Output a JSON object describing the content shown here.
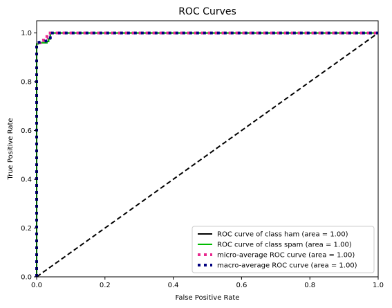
{
  "chart_data": {
    "type": "line",
    "title": "ROC Curves",
    "xlabel": "False Positive Rate",
    "ylabel": "True Positive Rate",
    "xlim": [
      0.0,
      1.0
    ],
    "ylim": [
      0.0,
      1.05
    ],
    "xticks": [
      "0.0",
      "0.2",
      "0.4",
      "0.6",
      "0.8",
      "1.0"
    ],
    "yticks": [
      "0.0",
      "0.2",
      "0.4",
      "0.6",
      "0.8",
      "1.0"
    ],
    "grid": false,
    "legend_position": "bottom-right",
    "series": [
      {
        "name": "ROC curve of class ham (area = 1.00)",
        "color": "#000000",
        "style": "solid",
        "x": [
          0.0,
          0.0,
          0.005,
          0.005,
          0.03,
          0.03,
          0.035,
          0.035,
          0.04,
          0.04,
          1.0
        ],
        "y": [
          0.0,
          0.955,
          0.955,
          0.96,
          0.96,
          0.965,
          0.965,
          0.975,
          0.975,
          1.0,
          1.0
        ]
      },
      {
        "name": "ROC curve of class spam (area = 1.00)",
        "color": "#00bb00",
        "style": "solid",
        "x": [
          0.0,
          0.0,
          0.005,
          0.005,
          0.03,
          0.03,
          0.035,
          0.035,
          0.04,
          0.04,
          1.0
        ],
        "y": [
          0.0,
          0.955,
          0.955,
          0.96,
          0.96,
          0.965,
          0.965,
          0.975,
          0.975,
          1.0,
          1.0
        ]
      },
      {
        "name": "micro-average ROC curve (area = 1.00)",
        "color": "#e8288e",
        "style": "dotted",
        "x": [
          0.0,
          0.0,
          0.01,
          0.01,
          0.02,
          0.02,
          0.03,
          0.03,
          1.0
        ],
        "y": [
          0.0,
          0.96,
          0.96,
          0.97,
          0.97,
          0.98,
          0.98,
          1.0,
          1.0
        ]
      },
      {
        "name": "macro-average ROC curve (area = 1.00)",
        "color": "#000080",
        "style": "dotted",
        "x": [
          0.0,
          0.0,
          0.04,
          0.04,
          1.0
        ],
        "y": [
          0.0,
          0.96,
          0.97,
          1.0,
          1.0
        ]
      }
    ],
    "reference_line": {
      "color": "#000000",
      "style": "dashed",
      "x": [
        0.0,
        1.0
      ],
      "y": [
        0.0,
        1.0
      ]
    }
  }
}
